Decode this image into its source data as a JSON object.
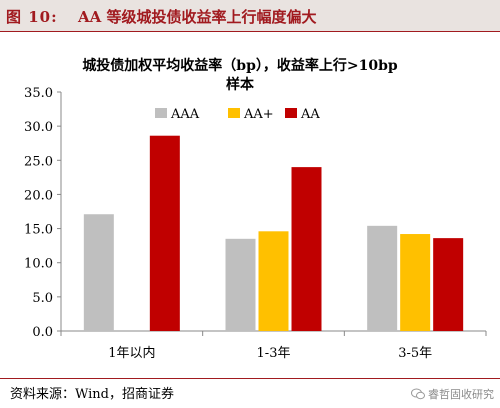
{
  "figure": {
    "label": "图 10:",
    "title": "AA 等级城投债收益率上行幅度偏大",
    "source": "资料来源：Wind，招商证券",
    "watermark": "睿哲固收研究"
  },
  "colors": {
    "header_bg": "#e9e3e0",
    "accent": "#a11a1f"
  },
  "chart_data": {
    "type": "bar",
    "title": "城投债加权平均收益率（bp），收益率上行>10bp 样本",
    "title_lines": [
      "城投债加权平均收益率（bp），收益率上行>10bp",
      "样本"
    ],
    "categories": [
      "1年以内",
      "1-3年",
      "3-5年"
    ],
    "series": [
      {
        "name": "AAA",
        "color": "#bfbfbf",
        "values": [
          17.1,
          13.5,
          15.4
        ]
      },
      {
        "name": "AA+",
        "color": "#ffc000",
        "values": [
          null,
          14.6,
          14.2
        ]
      },
      {
        "name": "AA",
        "color": "#c00000",
        "values": [
          28.6,
          24.0,
          13.6
        ]
      }
    ],
    "ylim": [
      0,
      35
    ],
    "yticks": [
      "0.0",
      "5.0",
      "10.0",
      "15.0",
      "20.0",
      "25.0",
      "30.0",
      "35.0"
    ],
    "xlabel": "",
    "ylabel": "",
    "grid": false,
    "legend": "top"
  }
}
